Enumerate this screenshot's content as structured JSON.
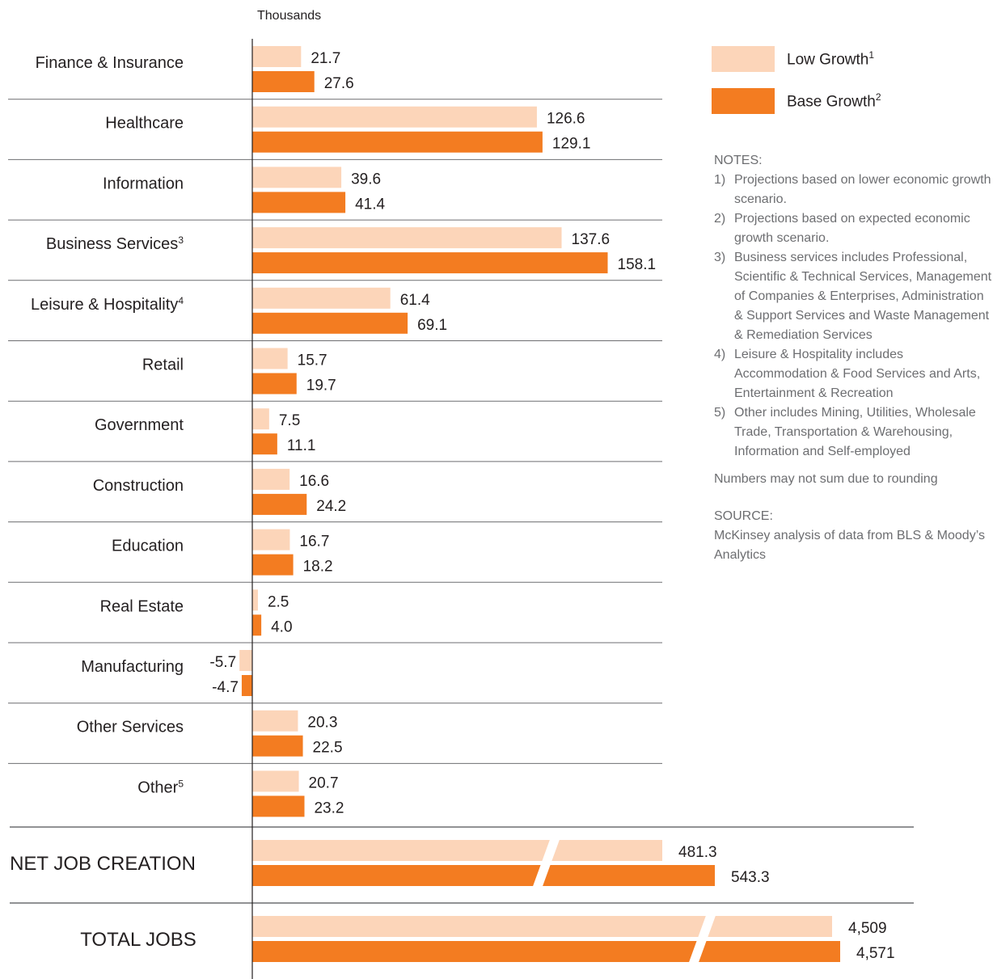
{
  "chart_data": {
    "type": "bar",
    "orientation": "horizontal",
    "unit_label": "Thousands",
    "series": [
      {
        "name": "Low Growth",
        "footnote": "1",
        "color": "#fcd5b9"
      },
      {
        "name": "Base Growth",
        "footnote": "2",
        "color": "#f37c21"
      }
    ],
    "categories": [
      {
        "label": "Finance & Insurance",
        "footnote": "",
        "low": 21.7,
        "base": 27.6,
        "low_text": "21.7",
        "base_text": "27.6"
      },
      {
        "label": "Healthcare",
        "footnote": "",
        "low": 126.6,
        "base": 129.1,
        "low_text": "126.6",
        "base_text": "129.1"
      },
      {
        "label": "Information",
        "footnote": "",
        "low": 39.6,
        "base": 41.4,
        "low_text": "39.6",
        "base_text": "41.4"
      },
      {
        "label": "Business Services",
        "footnote": "3",
        "low": 137.6,
        "base": 158.1,
        "low_text": "137.6",
        "base_text": "158.1"
      },
      {
        "label": "Leisure & Hospitality",
        "footnote": "4",
        "low": 61.4,
        "base": 69.1,
        "low_text": "61.4",
        "base_text": "69.1"
      },
      {
        "label": "Retail",
        "footnote": "",
        "low": 15.7,
        "base": 19.7,
        "low_text": "15.7",
        "base_text": "19.7"
      },
      {
        "label": "Government",
        "footnote": "",
        "low": 7.5,
        "base": 11.1,
        "low_text": "7.5",
        "base_text": "11.1"
      },
      {
        "label": "Construction",
        "footnote": "",
        "low": 16.6,
        "base": 24.2,
        "low_text": "16.6",
        "base_text": "24.2"
      },
      {
        "label": "Education",
        "footnote": "",
        "low": 16.7,
        "base": 18.2,
        "low_text": "16.7",
        "base_text": "18.2"
      },
      {
        "label": "Real Estate",
        "footnote": "",
        "low": 2.5,
        "base": 4.0,
        "low_text": "2.5",
        "base_text": "4.0"
      },
      {
        "label": "Manufacturing",
        "footnote": "",
        "low": -5.7,
        "base": -4.7,
        "low_text": "-5.7",
        "base_text": "-4.7"
      },
      {
        "label": "Other Services",
        "footnote": "",
        "low": 20.3,
        "base": 22.5,
        "low_text": "20.3",
        "base_text": "22.5"
      },
      {
        "label": "Other",
        "footnote": "5",
        "low": 20.7,
        "base": 23.2,
        "low_text": "20.7",
        "base_text": "23.2"
      }
    ],
    "summary": [
      {
        "label": "NET JOB CREATION",
        "low": 481.3,
        "base": 543.3,
        "low_text": "481.3",
        "base_text": "543.3",
        "axis_break": true
      },
      {
        "label": "TOTAL JOBS",
        "low": 4509,
        "base": 4571,
        "low_text": "4,509",
        "base_text": "4,571",
        "axis_break": true
      }
    ]
  },
  "legend": {
    "low_label": "Low Growth",
    "low_sup": "1",
    "base_label": "Base Growth",
    "base_sup": "2"
  },
  "notes": {
    "title": "NOTES:",
    "items": [
      {
        "num": "1)",
        "text": "Projections based on lower economic growth scenario."
      },
      {
        "num": "2)",
        "text": "Projections based on expected economic growth scenario."
      },
      {
        "num": "3)",
        "text": "Business services includes Professional, Scientific & Technical Services, Management of Companies & Enterprises, Administration & Support Services and Waste Management & Remediation Services"
      },
      {
        "num": "4)",
        "text": "Leisure & Hospitality includes Accommodation & Food Services and Arts, Entertainment & Recreation"
      },
      {
        "num": "5)",
        "text": "Other includes Mining, Utilities, Wholesale Trade, Transportation & Warehousing, Information and Self-employed"
      }
    ],
    "rounding": "Numbers may not sum due to rounding",
    "source_title": "SOURCE:",
    "source_text": "McKinsey analysis of data from BLS & Moody’s Analytics"
  }
}
